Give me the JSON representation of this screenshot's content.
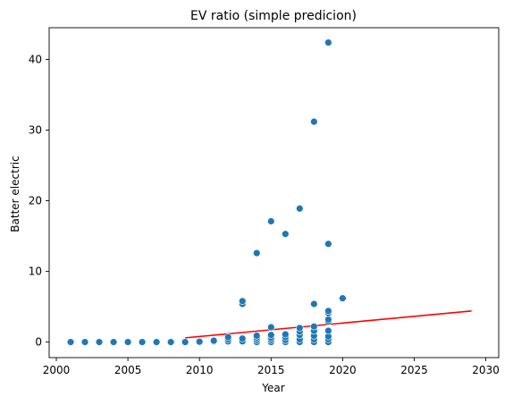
{
  "chart_data": {
    "type": "scatter",
    "title": "EV ratio (simple predicion)",
    "xlabel": "Year",
    "ylabel": "Batter electric",
    "xlim": [
      1999.5,
      2030.9
    ],
    "ylim": [
      -2.2,
      44.5
    ],
    "xticks": [
      2000,
      2005,
      2010,
      2015,
      2020,
      2025,
      2030
    ],
    "yticks": [
      0,
      10,
      20,
      30,
      40
    ],
    "grid": false,
    "legend": "none",
    "colors": {
      "points": "#1f77b4",
      "trend": "#ff0000"
    },
    "series": [
      {
        "type": "scatter",
        "points": [
          [
            2001,
            0.0
          ],
          [
            2002,
            0.0
          ],
          [
            2003,
            0.0
          ],
          [
            2004,
            0.0
          ],
          [
            2005,
            0.0
          ],
          [
            2006,
            0.0
          ],
          [
            2007,
            0.0
          ],
          [
            2008,
            0.0
          ],
          [
            2009,
            0.0
          ],
          [
            2010,
            0.0
          ],
          [
            2010,
            0.05
          ],
          [
            2011,
            0.1
          ],
          [
            2011,
            0.2
          ],
          [
            2012,
            0.1
          ],
          [
            2012,
            0.4
          ],
          [
            2012,
            0.7
          ],
          [
            2013,
            0.1
          ],
          [
            2013,
            0.5
          ],
          [
            2013,
            5.4
          ],
          [
            2013,
            5.8
          ],
          [
            2014,
            0.0
          ],
          [
            2014,
            0.3
          ],
          [
            2014,
            0.6
          ],
          [
            2014,
            0.9
          ],
          [
            2014,
            12.6
          ],
          [
            2015,
            0.0
          ],
          [
            2015,
            0.3
          ],
          [
            2015,
            0.6
          ],
          [
            2015,
            1.0
          ],
          [
            2015,
            2.1
          ],
          [
            2015,
            17.1
          ],
          [
            2016,
            0.0
          ],
          [
            2016,
            0.3
          ],
          [
            2016,
            0.7
          ],
          [
            2016,
            1.1
          ],
          [
            2016,
            15.3
          ],
          [
            2017,
            0.0
          ],
          [
            2017,
            0.4
          ],
          [
            2017,
            1.0
          ],
          [
            2017,
            1.5
          ],
          [
            2017,
            2.0
          ],
          [
            2017,
            18.9
          ],
          [
            2018,
            0.0
          ],
          [
            2018,
            0.4
          ],
          [
            2018,
            0.9
          ],
          [
            2018,
            1.6
          ],
          [
            2018,
            2.2
          ],
          [
            2018,
            5.4
          ],
          [
            2018,
            31.2
          ],
          [
            2019,
            0.0
          ],
          [
            2019,
            0.4
          ],
          [
            2019,
            0.8
          ],
          [
            2019,
            1.6
          ],
          [
            2019,
            2.9
          ],
          [
            2019,
            3.2
          ],
          [
            2019,
            4.1
          ],
          [
            2019,
            4.4
          ],
          [
            2019,
            13.9
          ],
          [
            2019,
            42.4
          ],
          [
            2020,
            6.2
          ]
        ]
      },
      {
        "type": "line",
        "points": [
          [
            2009,
            0.6
          ],
          [
            2029,
            4.4
          ]
        ]
      }
    ]
  }
}
